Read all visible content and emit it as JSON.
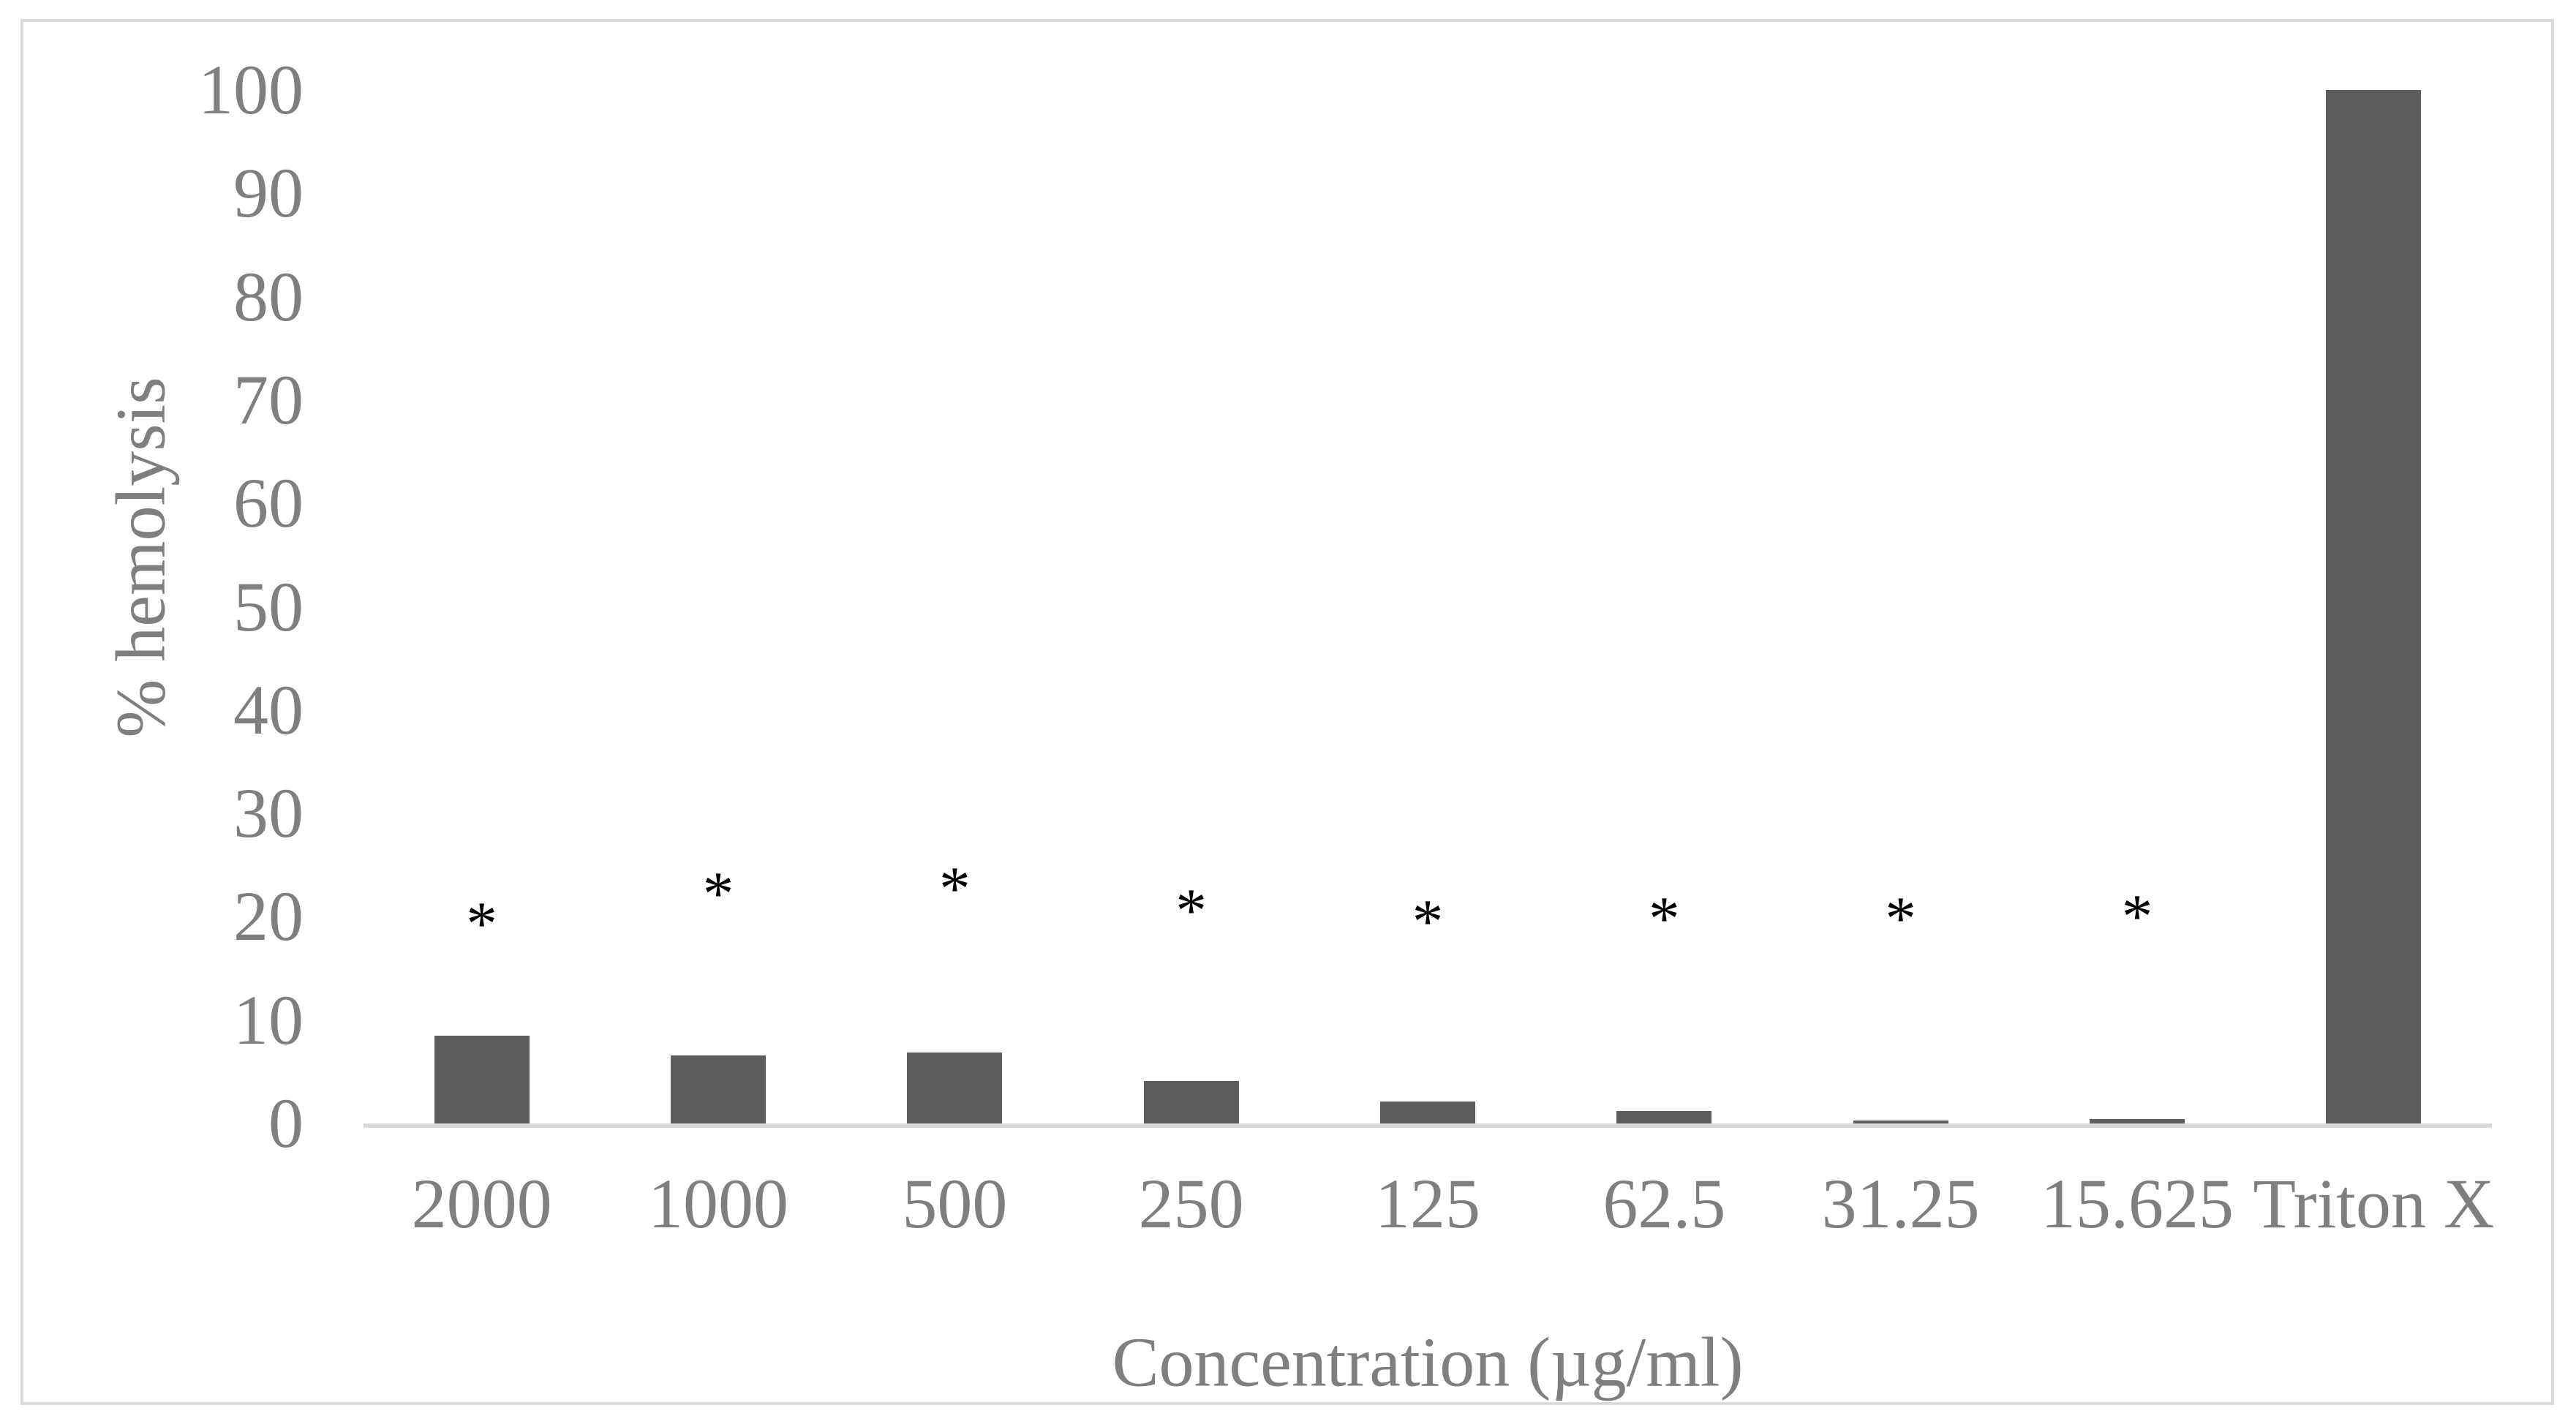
{
  "chart_data": {
    "type": "bar",
    "title": "",
    "xlabel": "Concentration (µg/ml)",
    "ylabel": "% hemolysis",
    "categories": [
      "2000",
      "1000",
      "500",
      "250",
      "125",
      "62.5",
      "31.25",
      "15.625",
      "Triton X"
    ],
    "values": [
      8.5,
      6.6,
      6.9,
      4.1,
      2.1,
      1.2,
      0.3,
      0.4,
      100
    ],
    "ylim": [
      0,
      100
    ],
    "yticks": [
      0,
      10,
      20,
      30,
      40,
      50,
      60,
      70,
      80,
      90,
      100
    ],
    "grid": false,
    "legend": false,
    "significance_markers": {
      "symbol": "*",
      "categories": [
        "2000",
        "1000",
        "500",
        "250",
        "125",
        "62.5",
        "31.25",
        "15.625"
      ],
      "y_values": [
        21.5,
        24.4,
        24.9,
        22.8,
        21.7,
        22.0,
        22.0,
        22.2
      ]
    },
    "colors": {
      "bar": "#5d5d5d",
      "text": "#7f7f7f",
      "axis_line": "#d9d9d9",
      "frame_border": "#d9d9d9",
      "marker": "#000000",
      "background": "#ffffff"
    }
  }
}
